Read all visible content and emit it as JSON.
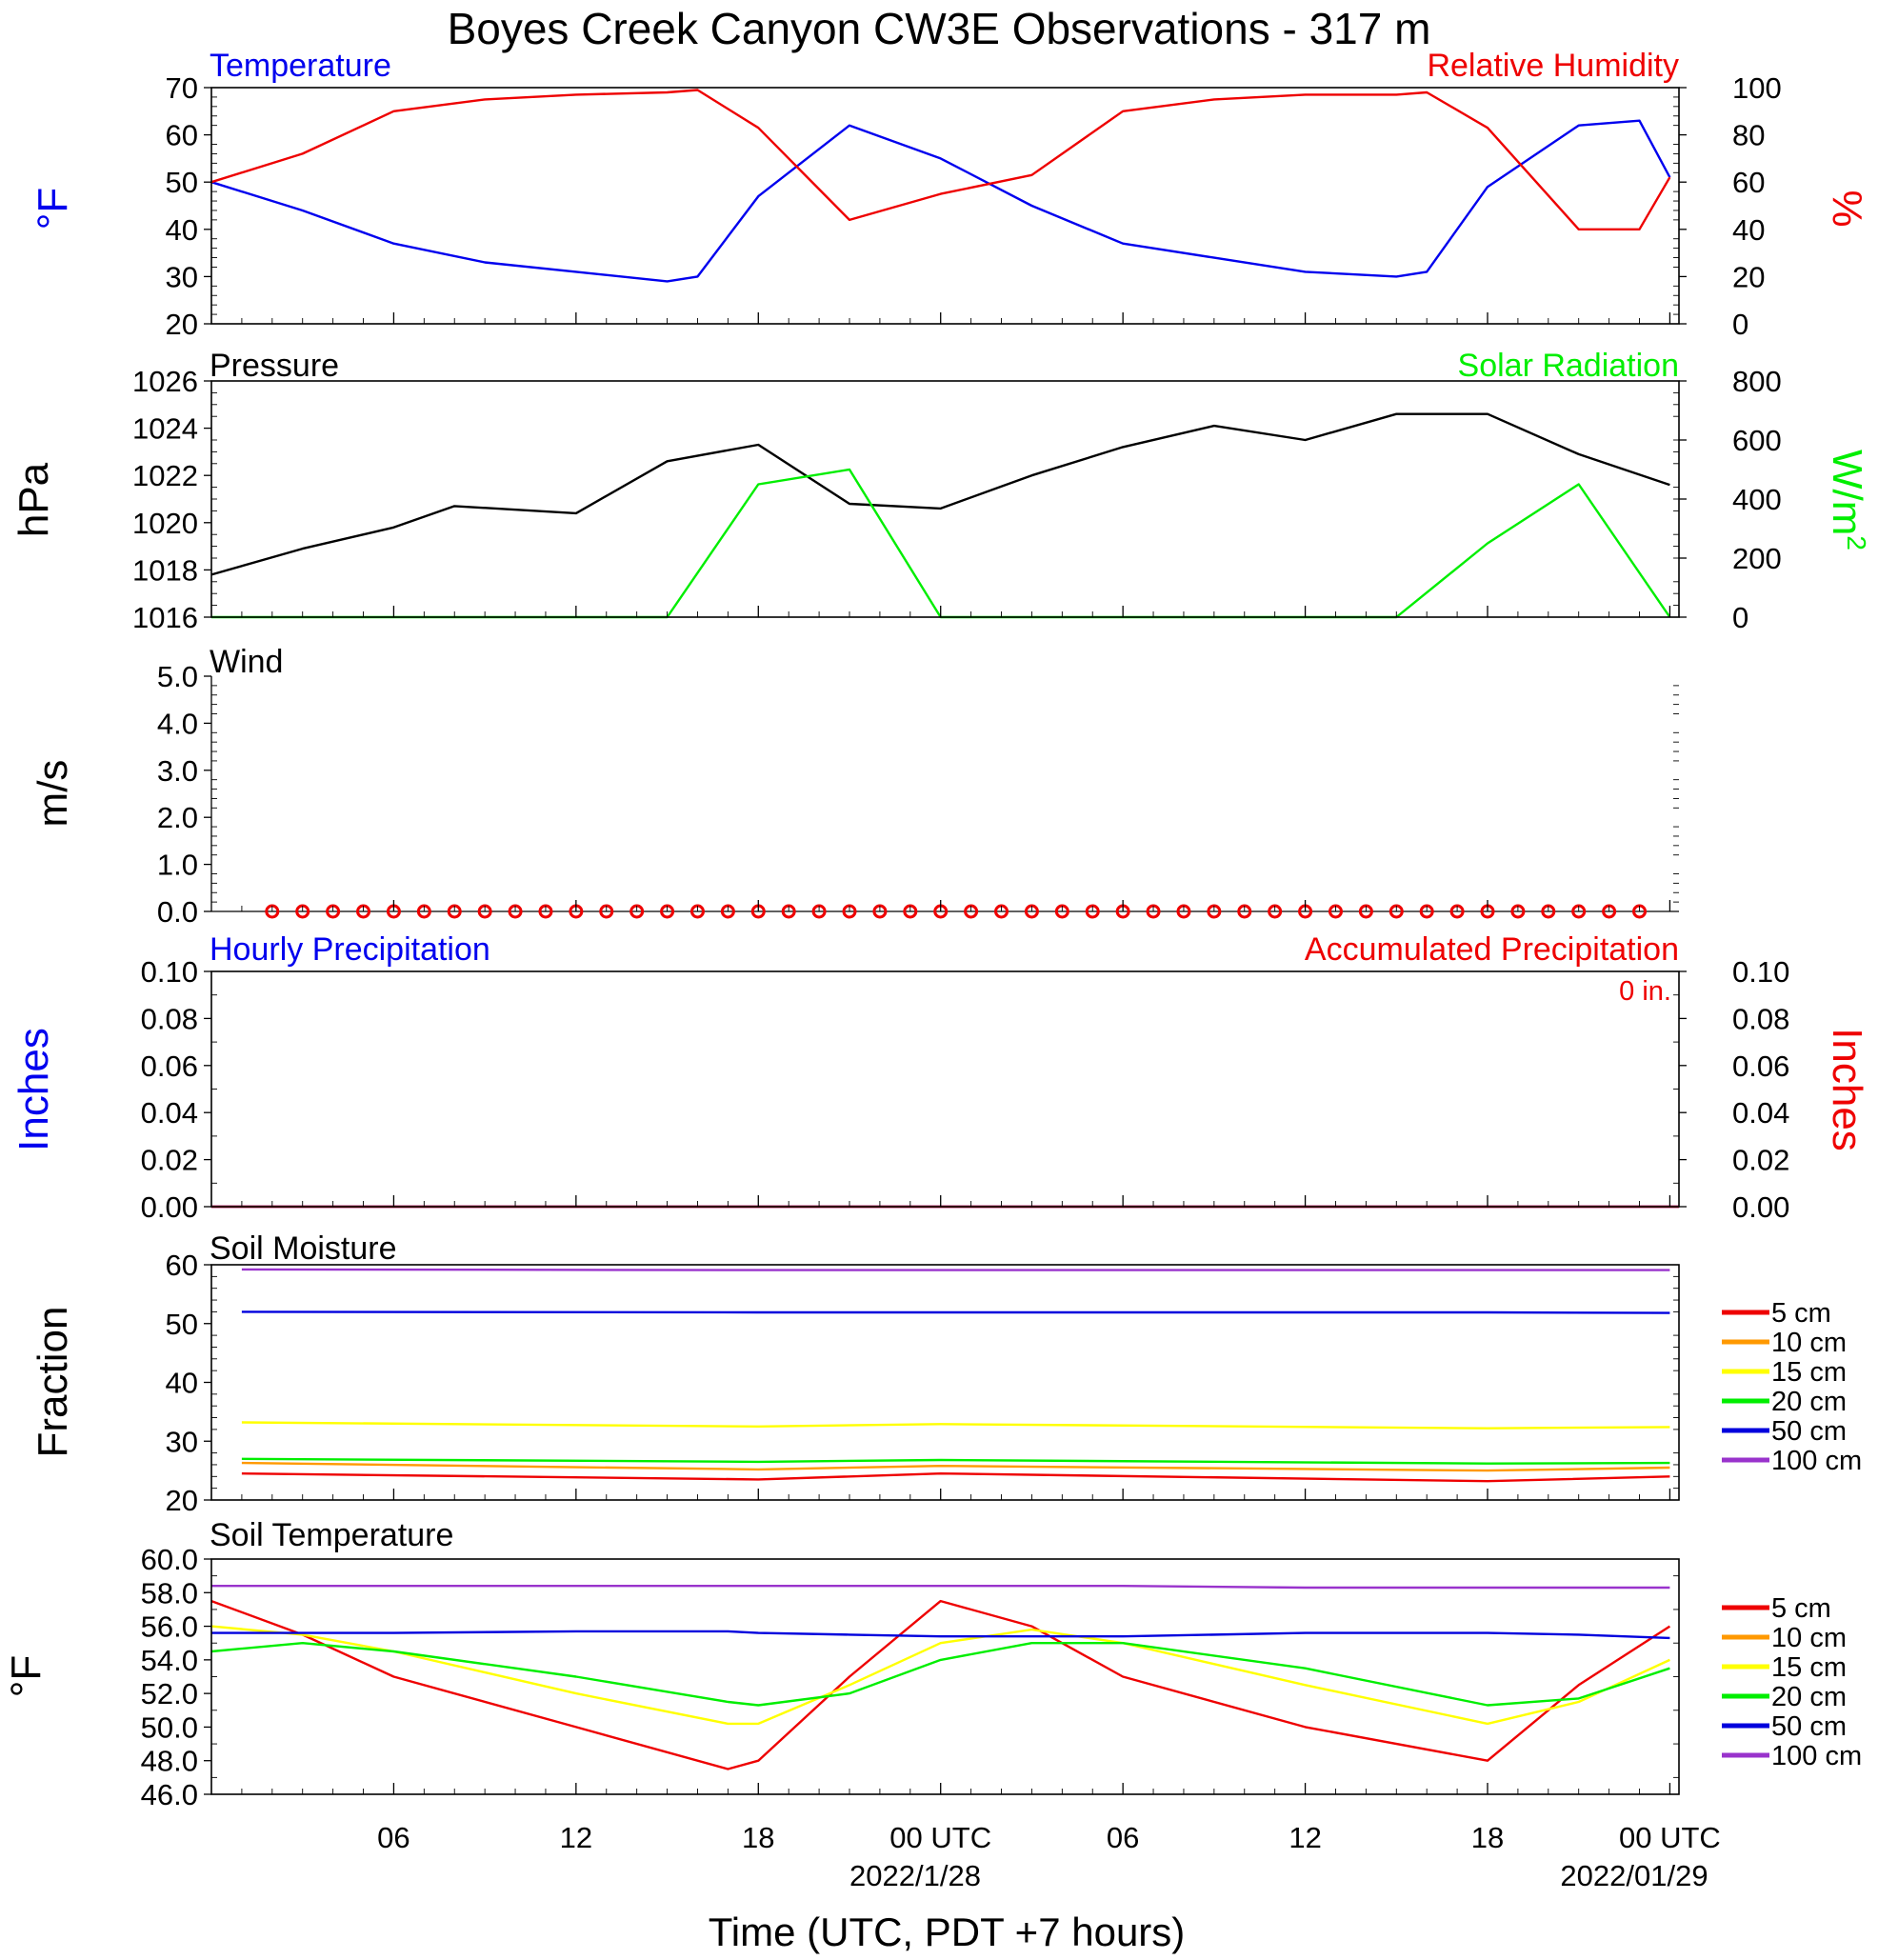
{
  "figure": {
    "title": "Boyes Creek Canyon CW3E Observations - 317 m",
    "xlabel": "Time (UTC, PDT +7 hours)",
    "x_ticks": [
      "06",
      "12",
      "18",
      "00 UTC",
      "06",
      "12",
      "18",
      "00 UTC"
    ],
    "date_labels": [
      "2022/1/28",
      "2022/01/29"
    ]
  },
  "panels": {
    "temp_rh": {
      "left_title": "Temperature",
      "right_title": "Relative Humidity",
      "left_axis": "°F",
      "right_axis": "%",
      "left_ticks": [
        "20",
        "30",
        "40",
        "50",
        "60",
        "70"
      ],
      "right_ticks": [
        "0",
        "20",
        "40",
        "60",
        "80",
        "100"
      ]
    },
    "pressure": {
      "left_title": "Pressure",
      "right_title": "Solar Radiation",
      "left_axis": "hPa",
      "right_axis": "W/m2",
      "left_ticks": [
        "1016",
        "1018",
        "1020",
        "1022",
        "1024",
        "1026"
      ],
      "right_ticks": [
        "0",
        "200",
        "400",
        "600",
        "800"
      ]
    },
    "wind": {
      "left_title": "Wind",
      "left_axis": "m/s",
      "left_ticks": [
        "0.0",
        "1.0",
        "2.0",
        "3.0",
        "4.0",
        "5.0"
      ]
    },
    "precip": {
      "left_title": "Hourly Precipitation",
      "right_title": "Accumulated Precipitation",
      "annotation": "0 in.",
      "left_axis": "Inches",
      "right_axis": "Inches",
      "left_ticks": [
        "0.00",
        "0.02",
        "0.04",
        "0.06",
        "0.08",
        "0.10"
      ],
      "right_ticks": [
        "0.00",
        "0.02",
        "0.04",
        "0.06",
        "0.08",
        "0.10"
      ]
    },
    "soil_moisture": {
      "left_title": "Soil Moisture",
      "left_axis": "Fraction",
      "left_ticks": [
        "20",
        "30",
        "40",
        "50",
        "60"
      ],
      "legend": [
        "5 cm",
        "10 cm",
        "15 cm",
        "20 cm",
        "50 cm",
        "100 cm"
      ]
    },
    "soil_temp": {
      "left_title": "Soil Temperature",
      "left_axis": "°F",
      "left_ticks": [
        "46.0",
        "48.0",
        "50.0",
        "52.0",
        "54.0",
        "56.0",
        "58.0",
        "60.0"
      ],
      "legend": [
        "5 cm",
        "10 cm",
        "15 cm",
        "20 cm",
        "50 cm",
        "100 cm"
      ]
    }
  },
  "colors": {
    "temperature": "#0000ee",
    "humidity": "#ee0000",
    "pressure": "#000000",
    "solar": "#00ee00",
    "wind_marker": "#ee0000",
    "depth_5": "#ee0000",
    "depth_10": "#ff9900",
    "depth_15": "#ffff00",
    "depth_20": "#00ee00",
    "depth_50": "#0000dd",
    "depth_100": "#9933cc"
  },
  "chart_data": [
    {
      "type": "line",
      "title": "Temperature / Relative Humidity",
      "x": [
        "2022-01-27T00",
        "2022-01-27T03",
        "2022-01-27T06",
        "2022-01-27T09",
        "2022-01-27T12",
        "2022-01-27T15",
        "2022-01-27T16",
        "2022-01-27T18",
        "2022-01-27T21",
        "2022-01-28T00",
        "2022-01-28T03",
        "2022-01-28T06",
        "2022-01-28T09",
        "2022-01-28T12",
        "2022-01-28T15",
        "2022-01-28T16",
        "2022-01-28T18",
        "2022-01-28T21",
        "2022-01-28T23",
        "2022-01-29T00"
      ],
      "series": [
        {
          "name": "Temperature",
          "axis": "left",
          "values": [
            50,
            44,
            37,
            33,
            31,
            29,
            30,
            47,
            62,
            55,
            45,
            37,
            34,
            31,
            30,
            31,
            49,
            62,
            63,
            51
          ]
        },
        {
          "name": "Relative Humidity",
          "axis": "right",
          "values": [
            60,
            72,
            90,
            95,
            97,
            98,
            99,
            83,
            44,
            55,
            63,
            90,
            95,
            97,
            97,
            98,
            83,
            40,
            40,
            62
          ]
        }
      ],
      "ylim_left": [
        20,
        70
      ],
      "ylim_right": [
        0,
        100
      ]
    },
    {
      "type": "line",
      "title": "Pressure / Solar Radiation",
      "x": [
        "2022-01-27T00",
        "2022-01-27T03",
        "2022-01-27T06",
        "2022-01-27T08",
        "2022-01-27T12",
        "2022-01-27T15",
        "2022-01-27T18",
        "2022-01-27T21",
        "2022-01-28T00",
        "2022-01-28T03",
        "2022-01-28T06",
        "2022-01-28T09",
        "2022-01-28T12",
        "2022-01-28T15",
        "2022-01-28T18",
        "2022-01-28T21",
        "2022-01-29T00"
      ],
      "series": [
        {
          "name": "Pressure",
          "axis": "left",
          "values": [
            1017.8,
            1018.9,
            1019.8,
            1020.7,
            1020.4,
            1022.6,
            1023.3,
            1020.8,
            1020.6,
            1022.0,
            1023.2,
            1024.1,
            1023.5,
            1024.6,
            1024.6,
            1022.9,
            1021.6
          ]
        },
        {
          "name": "Solar Radiation",
          "axis": "right",
          "values": [
            0,
            0,
            0,
            0,
            0,
            0,
            450,
            500,
            0,
            0,
            0,
            0,
            0,
            0,
            250,
            450,
            0
          ]
        }
      ],
      "ylim_left": [
        1016,
        1026
      ],
      "ylim_right": [
        0,
        800
      ]
    },
    {
      "type": "scatter",
      "title": "Wind",
      "x_hours": [
        2,
        3,
        4,
        5,
        6,
        7,
        8,
        9,
        10,
        11,
        12,
        13,
        14,
        15,
        16,
        17,
        18,
        19,
        20,
        21,
        22,
        23,
        24,
        25,
        26,
        27,
        28,
        29,
        30,
        31,
        32,
        33,
        34,
        35,
        36,
        37,
        38,
        39,
        40,
        41,
        42,
        43,
        44,
        45,
        46,
        47
      ],
      "values": [
        0,
        0,
        0,
        0,
        0,
        0,
        0,
        0,
        0,
        0,
        0,
        0,
        0,
        0,
        0,
        0,
        0,
        0,
        0,
        0,
        0,
        0,
        0,
        0,
        0,
        0,
        0,
        0,
        0,
        0,
        0,
        0,
        0,
        0,
        0,
        0,
        0,
        0,
        0,
        0,
        0,
        0,
        0,
        0,
        0,
        0
      ],
      "ylim": [
        0,
        5
      ]
    },
    {
      "type": "line",
      "title": "Precipitation",
      "series": [
        {
          "name": "Hourly Precipitation",
          "values": [
            0,
            0
          ]
        },
        {
          "name": "Accumulated Precipitation",
          "values": [
            0,
            0
          ]
        }
      ],
      "ylim": [
        0,
        0.1
      ]
    },
    {
      "type": "line",
      "title": "Soil Moisture",
      "x": [
        "2022-01-27T01",
        "2022-01-27T18",
        "2022-01-28T00",
        "2022-01-28T18",
        "2022-01-29T00"
      ],
      "series": [
        {
          "name": "5 cm",
          "values": [
            24.5,
            23.5,
            24.5,
            23.2,
            24
          ]
        },
        {
          "name": "10 cm",
          "values": [
            26.3,
            25.2,
            25.8,
            25,
            25.5
          ]
        },
        {
          "name": "15 cm",
          "values": [
            33.2,
            32.5,
            32.9,
            32.2,
            32.4
          ]
        },
        {
          "name": "20 cm",
          "values": [
            27,
            26.5,
            26.8,
            26.2,
            26.3
          ]
        },
        {
          "name": "50 cm",
          "values": [
            52,
            51.9,
            51.9,
            51.9,
            51.8
          ]
        },
        {
          "name": "100 cm",
          "values": [
            59.2,
            59.1,
            59.1,
            59.1,
            59.1
          ]
        }
      ],
      "ylim": [
        20,
        60
      ]
    },
    {
      "type": "line",
      "title": "Soil Temperature",
      "x": [
        "2022-01-27T00",
        "2022-01-27T03",
        "2022-01-27T06",
        "2022-01-27T12",
        "2022-01-27T17",
        "2022-01-27T18",
        "2022-01-27T21",
        "2022-01-28T00",
        "2022-01-28T03",
        "2022-01-28T06",
        "2022-01-28T12",
        "2022-01-28T18",
        "2022-01-28T21",
        "2022-01-29T00"
      ],
      "series": [
        {
          "name": "5 cm",
          "values": [
            57.5,
            55.5,
            53,
            50,
            47.5,
            48,
            53,
            57.5,
            56,
            53,
            50,
            48,
            52.5,
            56
          ]
        },
        {
          "name": "15 cm",
          "values": [
            56,
            55.5,
            54.5,
            52,
            50.2,
            50.2,
            52.5,
            55,
            55.8,
            55,
            52.5,
            50.2,
            51.5,
            54
          ]
        },
        {
          "name": "20 cm",
          "values": [
            54.5,
            55,
            54.5,
            53,
            51.5,
            51.3,
            52,
            54,
            55,
            55,
            53.5,
            51.3,
            51.7,
            53.5
          ]
        },
        {
          "name": "50 cm",
          "values": [
            55.6,
            55.6,
            55.6,
            55.7,
            55.7,
            55.6,
            55.5,
            55.4,
            55.4,
            55.4,
            55.6,
            55.6,
            55.5,
            55.3
          ]
        },
        {
          "name": "100 cm",
          "values": [
            58.4,
            58.4,
            58.4,
            58.4,
            58.4,
            58.4,
            58.4,
            58.4,
            58.4,
            58.4,
            58.3,
            58.3,
            58.3,
            58.3
          ]
        }
      ],
      "ylim": [
        46,
        60
      ]
    }
  ]
}
